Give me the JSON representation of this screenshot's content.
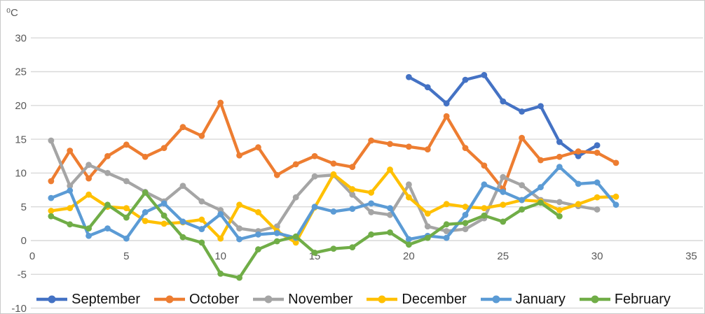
{
  "header": {
    "unit_label": "⁰C"
  },
  "styles": {
    "axis_text_color": "#595959",
    "grid_color": "#D9D9D9",
    "border_color": "#C9C9C9",
    "background": "#FFFFFF"
  },
  "axes": {
    "y_ticks": [
      30,
      25,
      20,
      15,
      10,
      5,
      0,
      -5,
      -10
    ],
    "x_ticks": [
      0,
      5,
      10,
      15,
      20,
      25,
      30,
      35
    ]
  },
  "chart_data": {
    "type": "line",
    "title": "",
    "xlabel": "",
    "ylabel": "⁰C",
    "xlim": [
      0,
      35
    ],
    "ylim": [
      -10,
      30
    ],
    "grid": true,
    "legend_position": "bottom",
    "marker": "circle",
    "series": [
      {
        "name": "September",
        "color": "#4472C4",
        "start_day": 20,
        "values": [
          24.2,
          22.7,
          20.3,
          23.8,
          24.5,
          20.6,
          19.1,
          19.9,
          14.6,
          12.5,
          14.1
        ]
      },
      {
        "name": "October",
        "color": "#ED7D31",
        "start_day": 1,
        "values": [
          8.8,
          13.3,
          9.2,
          12.5,
          14.2,
          12.4,
          13.7,
          16.8,
          15.5,
          20.4,
          12.6,
          13.8,
          9.7,
          11.3,
          12.5,
          11.4,
          10.9,
          14.8,
          14.3,
          13.9,
          13.5,
          18.4,
          13.7,
          11.1,
          7.6,
          15.2,
          11.9,
          12.4,
          13.2,
          13.0,
          11.5
        ]
      },
      {
        "name": "November",
        "color": "#A5A5A5",
        "start_day": 1,
        "values": [
          14.8,
          8.1,
          11.2,
          10.0,
          8.8,
          7.2,
          5.8,
          8.1,
          5.8,
          4.5,
          1.8,
          1.4,
          2.1,
          6.4,
          9.5,
          9.7,
          6.8,
          4.2,
          3.8,
          8.3,
          2.1,
          1.4,
          1.7,
          3.3,
          9.4,
          8.2,
          6.0,
          5.7,
          5.1,
          4.6
        ]
      },
      {
        "name": "December",
        "color": "#FFC000",
        "start_day": 1,
        "values": [
          4.4,
          4.8,
          6.8,
          5.0,
          4.8,
          2.9,
          2.5,
          2.7,
          3.1,
          0.3,
          5.3,
          4.2,
          1.4,
          -0.3,
          4.9,
          9.8,
          7.6,
          7.1,
          10.5,
          6.4,
          4.0,
          5.4,
          5.0,
          4.8,
          5.3,
          6.0,
          5.8,
          4.5,
          5.4,
          6.4,
          6.5
        ]
      },
      {
        "name": "January",
        "color": "#5B9BD5",
        "start_day": 1,
        "values": [
          6.3,
          7.4,
          0.7,
          1.8,
          0.3,
          4.2,
          5.5,
          2.8,
          1.7,
          3.9,
          0.2,
          0.9,
          1.1,
          0.4,
          5.0,
          4.3,
          4.7,
          5.5,
          4.8,
          0.2,
          0.7,
          0.4,
          3.8,
          8.3,
          7.2,
          6.0,
          7.9,
          10.9,
          8.4,
          8.6,
          5.3
        ]
      },
      {
        "name": "February",
        "color": "#70AD47",
        "start_day": 1,
        "values": [
          3.6,
          2.4,
          1.8,
          5.3,
          3.4,
          7.1,
          3.7,
          0.5,
          -0.3,
          -4.9,
          -5.5,
          -1.3,
          -0.1,
          0.6,
          -1.8,
          -1.2,
          -1.0,
          0.9,
          1.2,
          -0.6,
          0.4,
          2.4,
          2.6,
          3.7,
          2.8,
          4.6,
          5.6,
          3.6
        ]
      }
    ]
  },
  "legend": {
    "items": [
      {
        "label": "September",
        "color": "#4472C4"
      },
      {
        "label": "October",
        "color": "#ED7D31"
      },
      {
        "label": "November",
        "color": "#A5A5A5"
      },
      {
        "label": "December",
        "color": "#FFC000"
      },
      {
        "label": "January",
        "color": "#5B9BD5"
      },
      {
        "label": "February",
        "color": "#70AD47"
      }
    ]
  }
}
